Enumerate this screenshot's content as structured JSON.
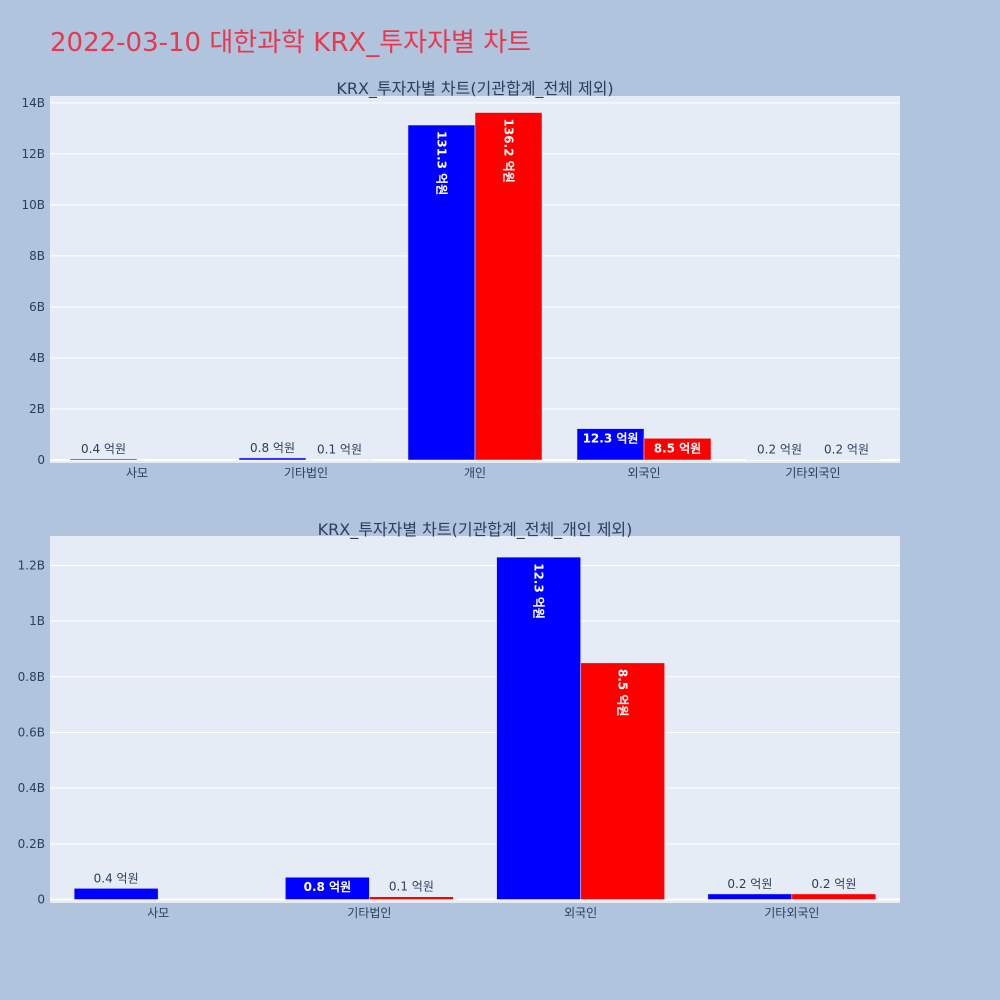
{
  "page": {
    "title": "2022-03-10 대한과학 KRX_투자자별 차트"
  },
  "colors": {
    "buy": "#0000ff",
    "sell": "#ff0000",
    "plot_bg": "#e5ecf6",
    "page_bg": "#b0c4de",
    "title": "#e8384f",
    "grid": "#ffffff"
  },
  "chart_data": [
    {
      "type": "bar",
      "title": "KRX_투자자별 차트(기관합계_전체 제외)",
      "categories": [
        "사모",
        "기타법인",
        "개인",
        "외국인",
        "기타외국인"
      ],
      "series": [
        {
          "color": "#0000ff",
          "values": [
            40000000,
            80000000,
            13130000000,
            1230000000,
            20000000
          ],
          "labels": [
            "0.4 억원",
            "0.8 억원",
            "131.3 억원",
            "12.3 억원",
            "0.2 억원"
          ]
        },
        {
          "color": "#ff0000",
          "values": [
            null,
            10000000,
            13620000000,
            850000000,
            20000000
          ],
          "labels": [
            "",
            "0.1 억원",
            "136.2 억원",
            "8.5 억원",
            "0.2 억원"
          ]
        }
      ],
      "yticks": [
        0,
        2000000000,
        4000000000,
        6000000000,
        8000000000,
        10000000000,
        12000000000,
        14000000000
      ],
      "ytick_labels": [
        "0",
        "2B",
        "4B",
        "6B",
        "8B",
        "10B",
        "12B",
        "14B"
      ],
      "ylim": [
        0,
        14150000000
      ],
      "grid": true,
      "barmode": "group"
    },
    {
      "type": "bar",
      "title": "KRX_투자자별 차트(기관합계_전체_개인 제외)",
      "categories": [
        "사모",
        "기타법인",
        "외국인",
        "기타외국인"
      ],
      "series": [
        {
          "color": "#0000ff",
          "values": [
            40000000,
            80000000,
            1230000000,
            20000000
          ],
          "labels": [
            "0.4 억원",
            "0.8 억원",
            "12.3 억원",
            "0.2 억원"
          ]
        },
        {
          "color": "#ff0000",
          "values": [
            null,
            10000000,
            850000000,
            20000000
          ],
          "labels": [
            "",
            "0.1 억원",
            "8.5 억원",
            "0.2 억원"
          ]
        }
      ],
      "yticks": [
        0,
        200000000,
        400000000,
        600000000,
        800000000,
        1000000000,
        1200000000
      ],
      "ytick_labels": [
        "0",
        "0.2B",
        "0.4B",
        "0.6B",
        "0.8B",
        "1B",
        "1.2B"
      ],
      "ylim": [
        0,
        1295000000
      ],
      "grid": true,
      "barmode": "group"
    }
  ]
}
